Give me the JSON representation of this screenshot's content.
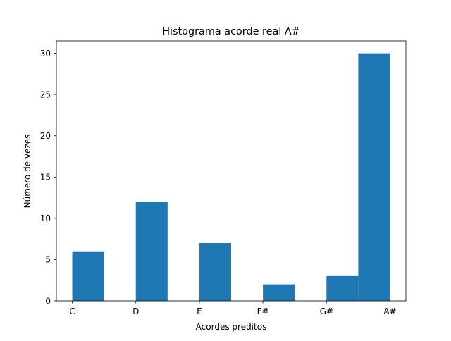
{
  "chart_data": {
    "type": "bar",
    "title": "Histograma acorde real A#",
    "xlabel": "Acordes preditos",
    "ylabel": "Número de vezes",
    "categories": [
      "C",
      "D",
      "E",
      "F#",
      "G#",
      "A#"
    ],
    "bins": [
      {
        "x0": 0.0,
        "x1": 0.5,
        "value": 6
      },
      {
        "x0": 0.5,
        "x1": 1.0,
        "value": 0
      },
      {
        "x0": 1.0,
        "x1": 1.5,
        "value": 12
      },
      {
        "x0": 1.5,
        "x1": 2.0,
        "value": 0
      },
      {
        "x0": 2.0,
        "x1": 2.5,
        "value": 7
      },
      {
        "x0": 2.5,
        "x1": 3.0,
        "value": 0
      },
      {
        "x0": 3.0,
        "x1": 3.5,
        "value": 2
      },
      {
        "x0": 3.5,
        "x1": 4.0,
        "value": 0
      },
      {
        "x0": 4.0,
        "x1": 4.5,
        "value": 3
      },
      {
        "x0": 4.5,
        "x1": 5.0,
        "value": 30
      }
    ],
    "xlim": [
      -0.25,
      5.25
    ],
    "ylim": [
      0,
      31.5
    ],
    "yticks": [
      0,
      5,
      10,
      15,
      20,
      25,
      30
    ],
    "bar_color": "#1f77b4",
    "grid": false,
    "legend": "none"
  }
}
